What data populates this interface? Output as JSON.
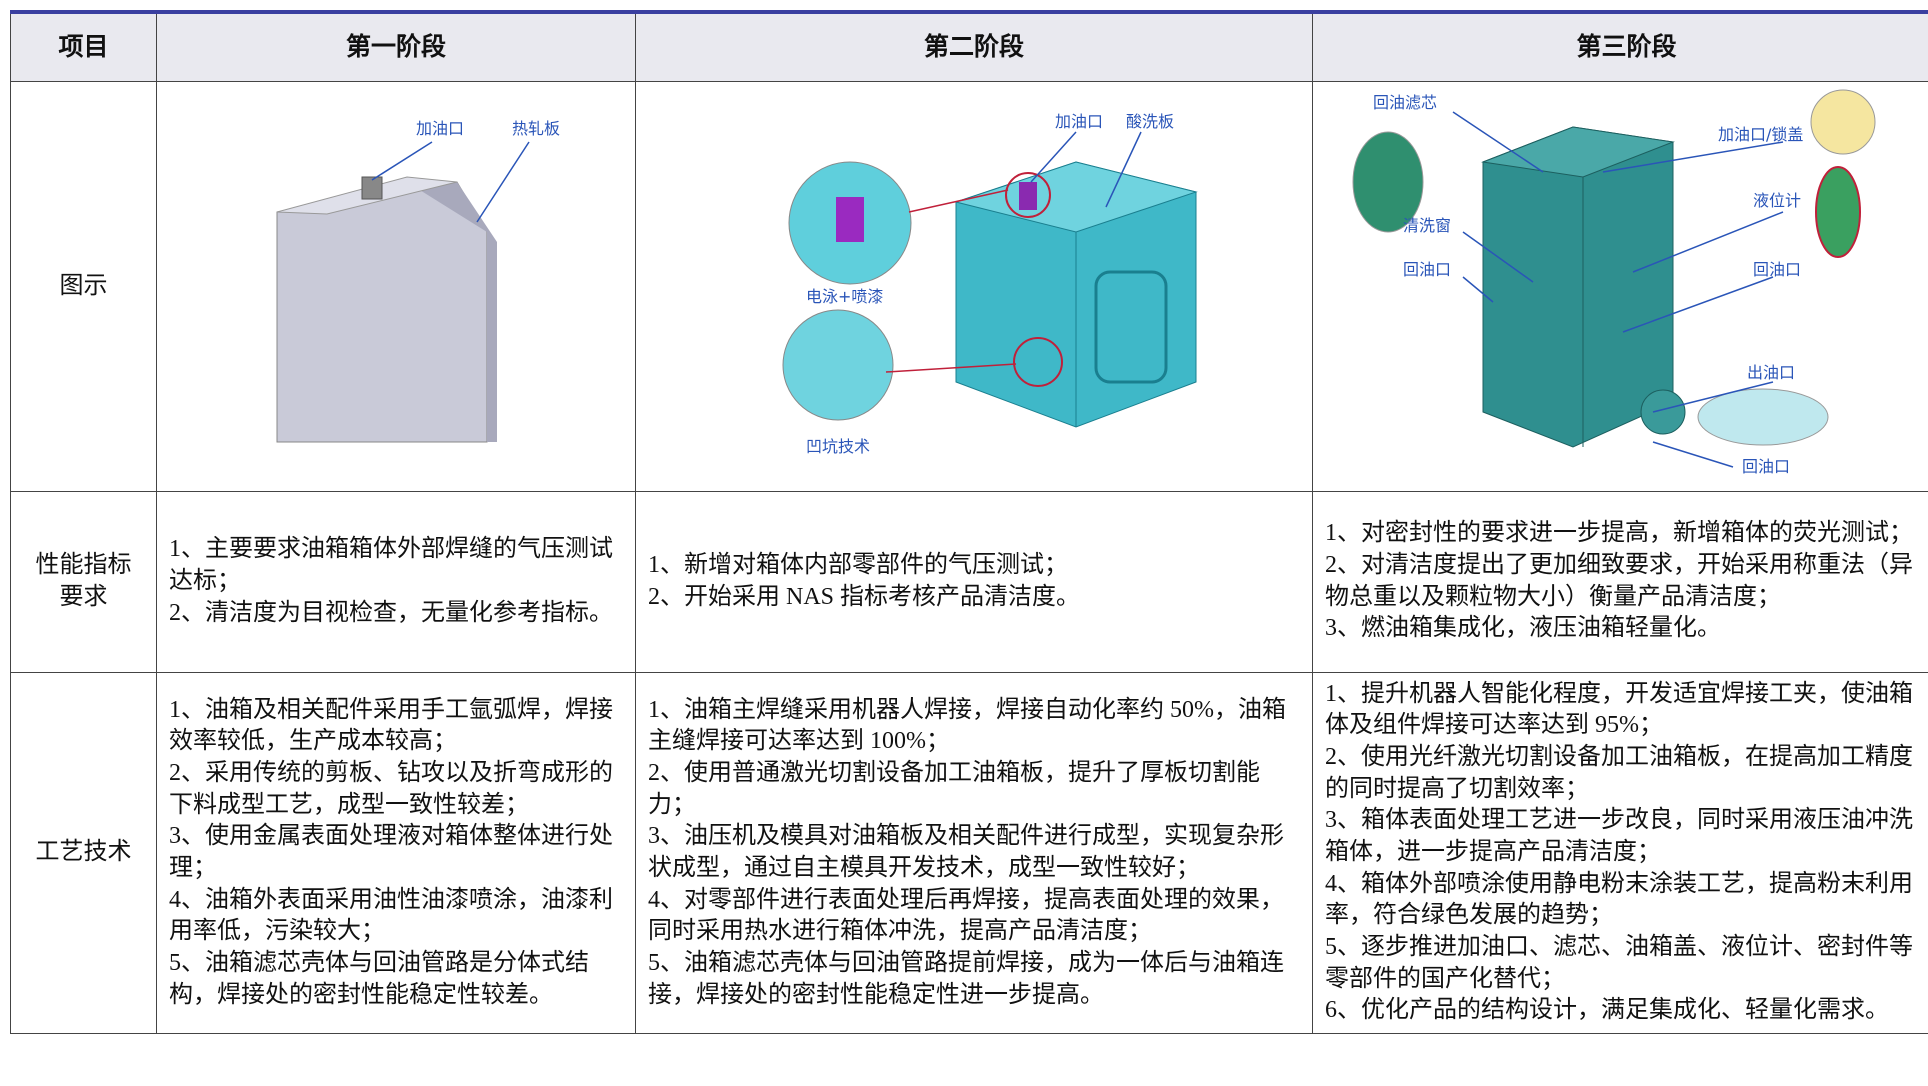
{
  "table": {
    "header": [
      "项目",
      "第一阶段",
      "第二阶段",
      "第三阶段"
    ],
    "figure_row": {
      "label": "图示",
      "stage1": [
        "加油口",
        "热轧板"
      ],
      "stage2": [
        "加油口",
        "酸洗板",
        "电泳+喷漆",
        "凹坑技术"
      ],
      "stage3": [
        "回油滤芯",
        "加油口/锁盖",
        "液位计",
        "清洗窗",
        "回油口",
        "回油口",
        "出油口",
        "回油口"
      ]
    },
    "rows": [
      {
        "label": "性能指标要求",
        "cells": [
          [
            "1、主要要求油箱箱体外部焊缝的气压测试达标；",
            "2、清洁度为目视检查，无量化参考指标。"
          ],
          [
            "1、新增对箱体内部零部件的气压测试；",
            "2、开始采用 NAS 指标考核产品清洁度。"
          ],
          [
            "1、对密封性的要求进一步提高，新增箱体的荧光测试；",
            "2、对清洁度提出了更加细致要求，开始采用称重法（异物总重以及颗粒物大小）衡量产品清洁度；",
            "3、燃油箱集成化，液压油箱轻量化。"
          ]
        ]
      },
      {
        "label": "工艺技术",
        "cells": [
          [
            "1、油箱及相关配件采用手工氩弧焊，焊接效率较低，生产成本较高；",
            "2、采用传统的剪板、钻攻以及折弯成形的下料成型工艺，成型一致性较差；",
            "3、使用金属表面处理液对箱体整体进行处理；",
            "4、油箱外表面采用油性油漆喷涂，油漆利用率低，污染较大；",
            "5、油箱滤芯壳体与回油管路是分体式结构，焊接处的密封性能稳定性较差。"
          ],
          [
            "1、油箱主焊缝采用机器人焊接，焊接自动化率约 50%，油箱主缝焊接可达率达到 100%；",
            "2、使用普通激光切割设备加工油箱板，提升了厚板切割能力；",
            "3、油压机及模具对油箱板及相关配件进行成型，实现复杂形状成型，通过自主模具开发技术，成型一致性较好；",
            "4、对零部件进行表面处理后再焊接，提高表面处理的效果，同时采用热水进行箱体冲洗，提高产品清洁度；",
            "5、油箱滤芯壳体与回油管路提前焊接，成为一体后与油箱连接，焊接处的密封性能稳定性进一步提高。"
          ],
          [
            "1、提升机器人智能化程度，开发适宜焊接工夹，使油箱体及组件焊接可达率达到 95%；",
            "2、使用光纤激光切割设备加工油箱板，在提高加工精度的同时提高了切割效率；",
            "3、箱体表面处理工艺进一步改良，同时采用液压油冲洗箱体，进一步提高产品清洁度；",
            "4、箱体外部喷涂使用静电粉末涂装工艺，提高粉末利用率，符合绿色发展的趋势；",
            "5、逐步推进加油口、滤芯、油箱盖、液位计、密封件等零部件的国产化替代；",
            "6、优化产品的结构设计，满足集成化、轻量化需求。"
          ]
        ]
      }
    ]
  }
}
